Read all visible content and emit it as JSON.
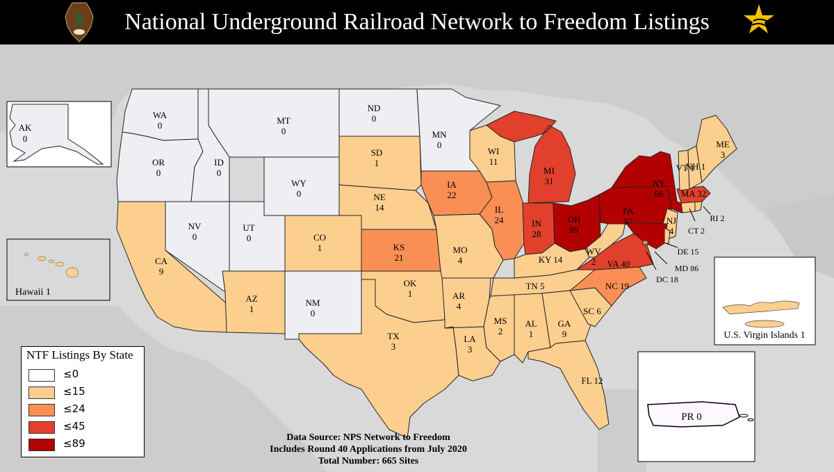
{
  "title": "National Underground Railroad Network to Freedom Listings",
  "colors": {
    "none": "#eeeef3",
    "c15": "#fdcf8f",
    "c24": "#f98f55",
    "c45": "#e1412c",
    "c89": "#b30000",
    "land": "#cdcdcd",
    "water": "#d9d9d9"
  },
  "states": [
    {
      "abbr": "WA",
      "count": "0",
      "level": "none"
    },
    {
      "abbr": "OR",
      "count": "0",
      "level": "none"
    },
    {
      "abbr": "CA",
      "count": "9",
      "level": "c15"
    },
    {
      "abbr": "NV",
      "count": "0",
      "level": "none"
    },
    {
      "abbr": "ID",
      "count": "0",
      "level": "none"
    },
    {
      "abbr": "MT",
      "count": "0",
      "level": "none"
    },
    {
      "abbr": "WY",
      "count": "0",
      "level": "none"
    },
    {
      "abbr": "UT",
      "count": "0",
      "level": "none"
    },
    {
      "abbr": "AZ",
      "count": "1",
      "level": "c15"
    },
    {
      "abbr": "CO",
      "count": "1",
      "level": "c15"
    },
    {
      "abbr": "NM",
      "count": "0",
      "level": "none"
    },
    {
      "abbr": "ND",
      "count": "0",
      "level": "none"
    },
    {
      "abbr": "SD",
      "count": "1",
      "level": "c15"
    },
    {
      "abbr": "NE",
      "count": "14",
      "level": "c15"
    },
    {
      "abbr": "KS",
      "count": "21",
      "level": "c24"
    },
    {
      "abbr": "OK",
      "count": "1",
      "level": "c15"
    },
    {
      "abbr": "TX",
      "count": "3",
      "level": "c15"
    },
    {
      "abbr": "MN",
      "count": "0",
      "level": "none"
    },
    {
      "abbr": "IA",
      "count": "22",
      "level": "c24"
    },
    {
      "abbr": "MO",
      "count": "4",
      "level": "c15"
    },
    {
      "abbr": "AR",
      "count": "4",
      "level": "c15"
    },
    {
      "abbr": "LA",
      "count": "3",
      "level": "c15"
    },
    {
      "abbr": "WI",
      "count": "11",
      "level": "c15"
    },
    {
      "abbr": "IL",
      "count": "24",
      "level": "c24"
    },
    {
      "abbr": "MI",
      "count": "31",
      "level": "c45"
    },
    {
      "abbr": "IN",
      "count": "28",
      "level": "c45"
    },
    {
      "abbr": "OH",
      "count": "89",
      "level": "c89"
    },
    {
      "abbr": "KY",
      "count": "14",
      "level": "c15"
    },
    {
      "abbr": "TN",
      "count": "5",
      "level": "c15"
    },
    {
      "abbr": "MS",
      "count": "2",
      "level": "c15"
    },
    {
      "abbr": "AL",
      "count": "1",
      "level": "c15"
    },
    {
      "abbr": "GA",
      "count": "9",
      "level": "c15"
    },
    {
      "abbr": "FL",
      "count": "12",
      "level": "c15"
    },
    {
      "abbr": "SC",
      "count": "6",
      "level": "c15"
    },
    {
      "abbr": "NC",
      "count": "19",
      "level": "c24"
    },
    {
      "abbr": "VA",
      "count": "40",
      "level": "c45"
    },
    {
      "abbr": "WV",
      "count": "2",
      "level": "c15"
    },
    {
      "abbr": "PA",
      "count": "57",
      "level": "c89"
    },
    {
      "abbr": "NY",
      "count": "66",
      "level": "c89"
    },
    {
      "abbr": "NJ",
      "count": "4",
      "level": "c15"
    },
    {
      "abbr": "MD",
      "count": "86",
      "level": "c89"
    },
    {
      "abbr": "DE",
      "count": "15",
      "level": "c15"
    },
    {
      "abbr": "DC",
      "count": "18",
      "level": "c24"
    },
    {
      "abbr": "CT",
      "count": "2",
      "level": "c15"
    },
    {
      "abbr": "RI",
      "count": "2",
      "level": "c15"
    },
    {
      "abbr": "MA",
      "count": "32",
      "level": "c45"
    },
    {
      "abbr": "VT",
      "count": "1",
      "level": "c15"
    },
    {
      "abbr": "NH",
      "count": "1",
      "level": "c15"
    },
    {
      "abbr": "ME",
      "count": "3",
      "level": "c15"
    },
    {
      "abbr": "AK",
      "count": "0",
      "level": "none"
    },
    {
      "abbr": "PR",
      "count": "0",
      "level": "none"
    }
  ],
  "insets": {
    "hawaii": "Hawaii 1",
    "virgin_islands": "U.S. Virgin Islands 1"
  },
  "legend": {
    "title": "NTF Listings By State",
    "items": [
      {
        "label": "≤0",
        "level": "none"
      },
      {
        "label": "≤15",
        "level": "c15"
      },
      {
        "label": "≤24",
        "level": "c24"
      },
      {
        "label": "≤45",
        "level": "c45"
      },
      {
        "label": "≤89",
        "level": "c89"
      }
    ]
  },
  "source": {
    "line1": "Data Source: NPS Network to Freedom",
    "line2": "Includes Round 40 Applications from July 2020",
    "line3": "Total Number: 665 Sites"
  }
}
